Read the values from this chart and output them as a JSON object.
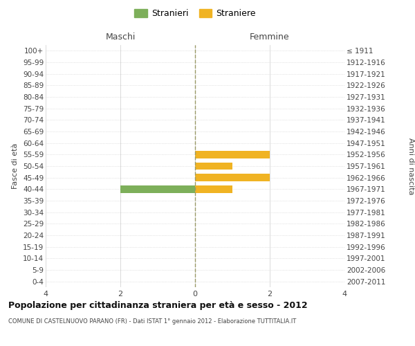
{
  "age_groups": [
    "100+",
    "95-99",
    "90-94",
    "85-89",
    "80-84",
    "75-79",
    "70-74",
    "65-69",
    "60-64",
    "55-59",
    "50-54",
    "45-49",
    "40-44",
    "35-39",
    "30-34",
    "25-29",
    "20-24",
    "15-19",
    "10-14",
    "5-9",
    "0-4"
  ],
  "birth_years": [
    "≤ 1911",
    "1912-1916",
    "1917-1921",
    "1922-1926",
    "1927-1931",
    "1932-1936",
    "1937-1941",
    "1942-1946",
    "1947-1951",
    "1952-1956",
    "1957-1961",
    "1962-1966",
    "1967-1971",
    "1972-1976",
    "1977-1981",
    "1982-1986",
    "1987-1991",
    "1992-1996",
    "1997-2001",
    "2002-2006",
    "2007-2011"
  ],
  "males": [
    0,
    0,
    0,
    0,
    0,
    0,
    0,
    0,
    0,
    0,
    0,
    0,
    -2,
    0,
    0,
    0,
    0,
    0,
    0,
    0,
    0
  ],
  "females": [
    0,
    0,
    0,
    0,
    0,
    0,
    0,
    0,
    0,
    2,
    1,
    2,
    1,
    0,
    0,
    0,
    0,
    0,
    0,
    0,
    0
  ],
  "male_color": "#7DAF5A",
  "female_color": "#F0B323",
  "xlim": [
    -4,
    4
  ],
  "xticks": [
    -4,
    -2,
    0,
    2,
    4
  ],
  "xticklabels": [
    "4",
    "2",
    "0",
    "2",
    "4"
  ],
  "title": "Popolazione per cittadinanza straniera per età e sesso - 2012",
  "subtitle": "COMUNE DI CASTELNUOVO PARANO (FR) - Dati ISTAT 1° gennaio 2012 - Elaborazione TUTTITALIA.IT",
  "ylabel_left": "Fasce di età",
  "ylabel_right": "Anni di nascita",
  "legend_male": "Stranieri",
  "legend_female": "Straniere",
  "header_left": "Maschi",
  "header_right": "Femmine",
  "background_color": "#ffffff",
  "grid_color": "#cccccc",
  "center_line_color": "#999966"
}
